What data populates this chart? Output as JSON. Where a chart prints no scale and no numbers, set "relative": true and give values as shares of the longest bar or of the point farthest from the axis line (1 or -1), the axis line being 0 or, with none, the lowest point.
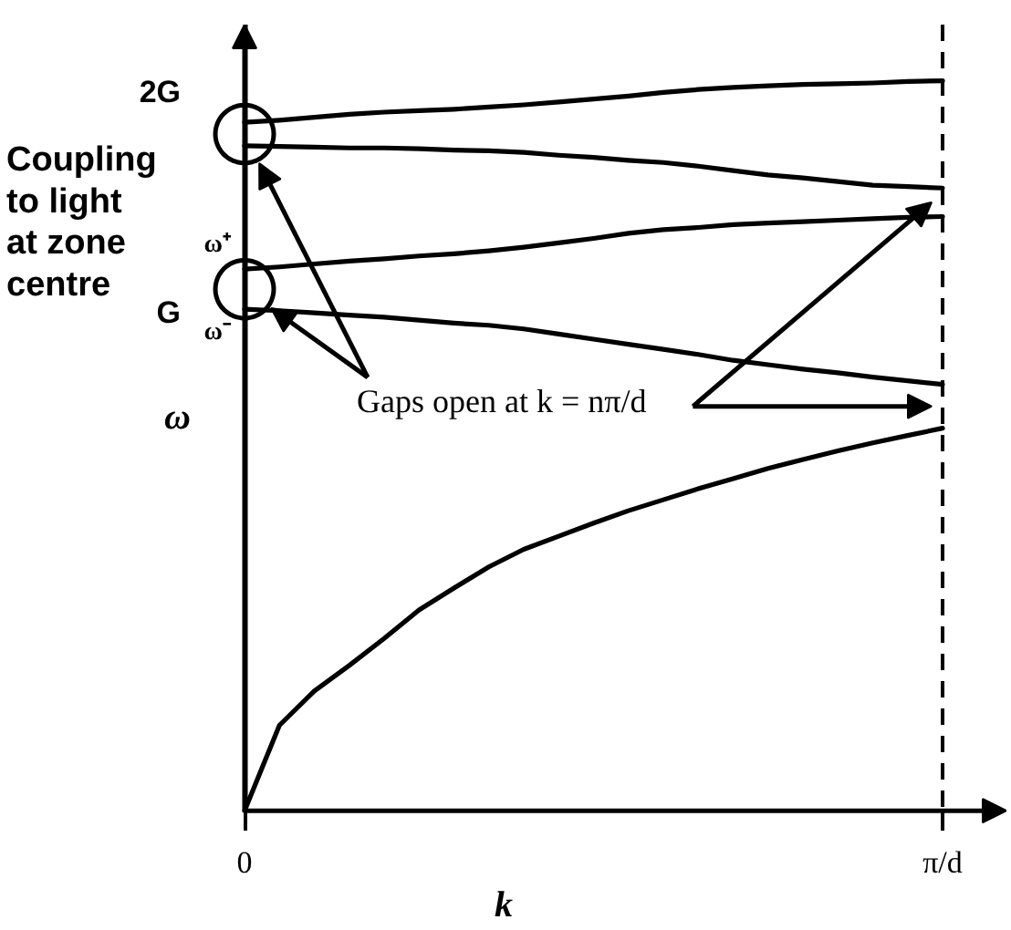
{
  "chart_data": {
    "type": "line",
    "xlabel": "k",
    "ylabel": "ω",
    "relative": true,
    "line_style": "solid",
    "categories": [
      "0",
      null,
      null,
      null,
      null,
      null,
      null,
      null,
      null,
      null,
      null,
      null,
      null,
      null,
      null,
      null,
      null,
      null,
      null,
      null,
      "π/d"
    ],
    "series": [
      {
        "color": "#000000",
        "values": [
          0,
          0.117,
          0.164,
          0.199,
          0.236,
          0.275,
          0.305,
          0.334,
          0.358,
          0.376,
          0.394,
          0.411,
          0.426,
          0.441,
          0.455,
          0.469,
          0.481,
          0.493,
          0.504,
          0.514,
          0.524
        ]
      },
      {
        "color": "#000000",
        "values": [
          0.687,
          0.685,
          0.682,
          0.679,
          0.676,
          0.672,
          0.668,
          0.665,
          0.66,
          0.653,
          0.646,
          0.639,
          0.632,
          0.625,
          0.617,
          0.611,
          0.605,
          0.6,
          0.594,
          0.589,
          0.584
        ]
      },
      {
        "color": "#000000",
        "values": [
          0.742,
          0.745,
          0.749,
          0.753,
          0.756,
          0.76,
          0.763,
          0.767,
          0.772,
          0.778,
          0.784,
          0.791,
          0.796,
          0.799,
          0.803,
          0.805,
          0.807,
          0.809,
          0.811,
          0.813,
          0.814
        ]
      },
      {
        "color": "#000000",
        "values": [
          0.911,
          0.91,
          0.909,
          0.908,
          0.908,
          0.907,
          0.905,
          0.904,
          0.902,
          0.898,
          0.895,
          0.891,
          0.888,
          0.883,
          0.877,
          0.871,
          0.867,
          0.862,
          0.857,
          0.855,
          0.853
        ]
      },
      {
        "color": "#000000",
        "values": [
          0.943,
          0.946,
          0.95,
          0.954,
          0.957,
          0.959,
          0.961,
          0.964,
          0.967,
          0.971,
          0.975,
          0.979,
          0.984,
          0.988,
          0.991,
          0.993,
          0.995,
          0.996,
          0.997,
          0.999,
          1.0
        ]
      }
    ],
    "ref_lines": [
      {
        "axis": "x",
        "value": "π/d",
        "line_style": "dashed"
      }
    ],
    "annotations": [
      "Coupling to light at zone centre",
      "Gaps open at k = nπ/d",
      "ω⁺",
      "ω⁻",
      "2G",
      "G"
    ]
  }
}
